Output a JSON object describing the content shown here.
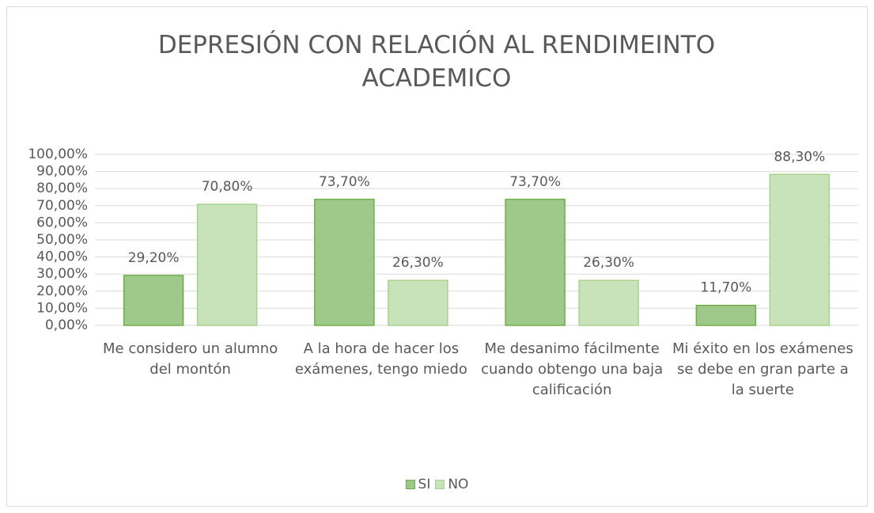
{
  "chart_data": {
    "type": "bar",
    "title": "DEPRESIÓN CON RELACIÓN AL RENDIMEINTO ACADEMICO",
    "categories": [
      "Me considero un alumno del montón",
      "A la hora de hacer los exámenes, tengo miedo",
      "Me desanimo fácilmente cuando obtengo una baja calificación",
      "Mi éxito en los exámenes se debe en gran parte a la suerte"
    ],
    "series": [
      {
        "name": "SI",
        "color": "#9ec98a",
        "values": [
          29.2,
          73.7,
          73.7,
          11.7
        ],
        "value_labels": [
          "29,20%",
          "73,70%",
          "73,70%",
          "11,70%"
        ]
      },
      {
        "name": "NO",
        "color": "#c8e2b9",
        "values": [
          70.8,
          26.3,
          26.3,
          88.3
        ],
        "value_labels": [
          "70,80%",
          "26,30%",
          "26,30%",
          "88,30%"
        ]
      }
    ],
    "ylim": [
      0,
      100
    ],
    "yticks": [
      {
        "value": 0,
        "label": "0,00%"
      },
      {
        "value": 10,
        "label": "10,00%"
      },
      {
        "value": 20,
        "label": "20,00%"
      },
      {
        "value": 30,
        "label": "30,00%"
      },
      {
        "value": 40,
        "label": "40,00%"
      },
      {
        "value": 50,
        "label": "50,00%"
      },
      {
        "value": 60,
        "label": "60,00%"
      },
      {
        "value": 70,
        "label": "70,00%"
      },
      {
        "value": 80,
        "label": "80,00%"
      },
      {
        "value": 90,
        "label": "90,00%"
      },
      {
        "value": 100,
        "label": "100,00%"
      }
    ],
    "grid": true,
    "legend": "bottom"
  }
}
